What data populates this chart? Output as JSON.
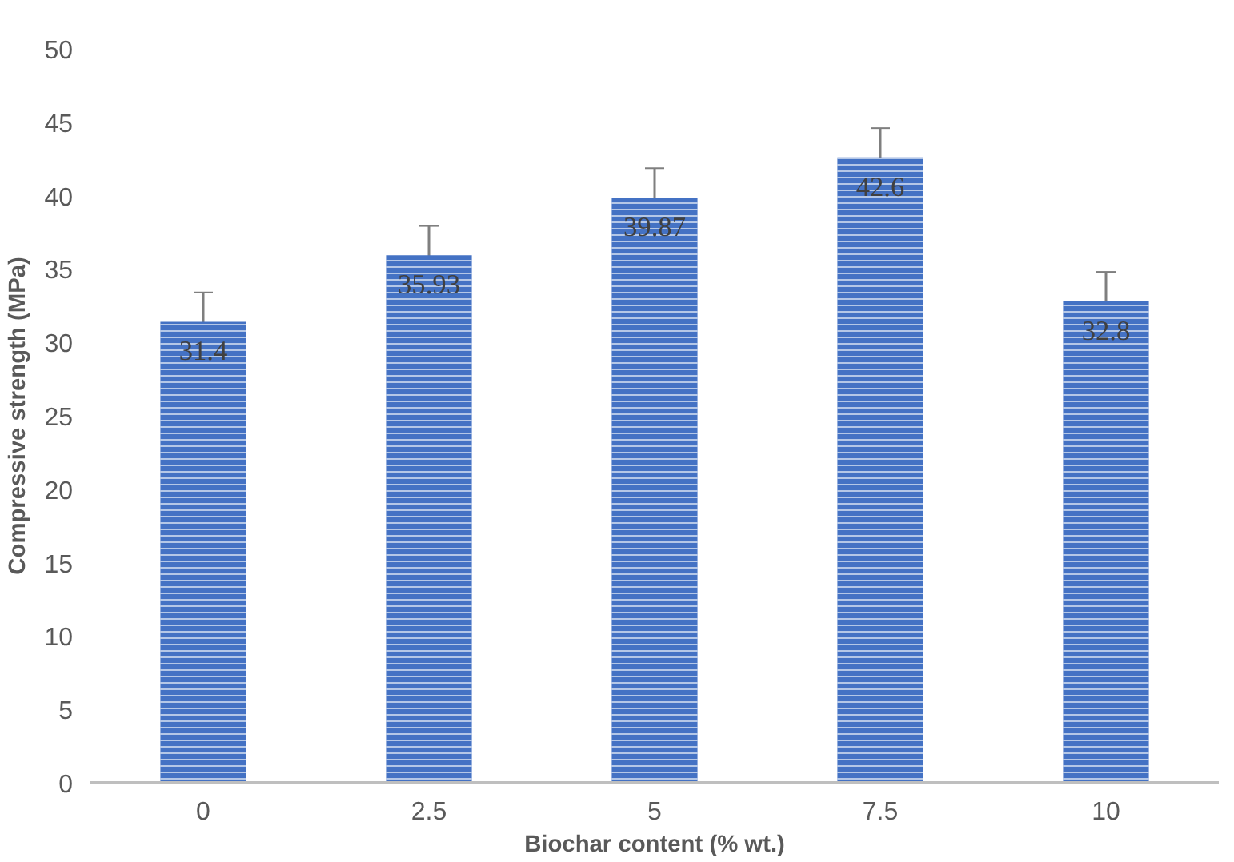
{
  "chart_data": {
    "type": "bar",
    "xlabel": "Biochar content (% wt.)",
    "ylabel": "Compressive strength (MPa)",
    "categories": [
      "0",
      "2.5",
      "5",
      "7.5",
      "10"
    ],
    "values": [
      31.4,
      35.93,
      39.87,
      42.6,
      32.8
    ],
    "errors": [
      2,
      2,
      2,
      2,
      2
    ],
    "color": "#4472c4",
    "data_labels": true,
    "ylim": [
      0,
      50
    ],
    "yticks": [
      0,
      5,
      10,
      15,
      20,
      25,
      30,
      35,
      40,
      45,
      50
    ],
    "grid": false
  }
}
